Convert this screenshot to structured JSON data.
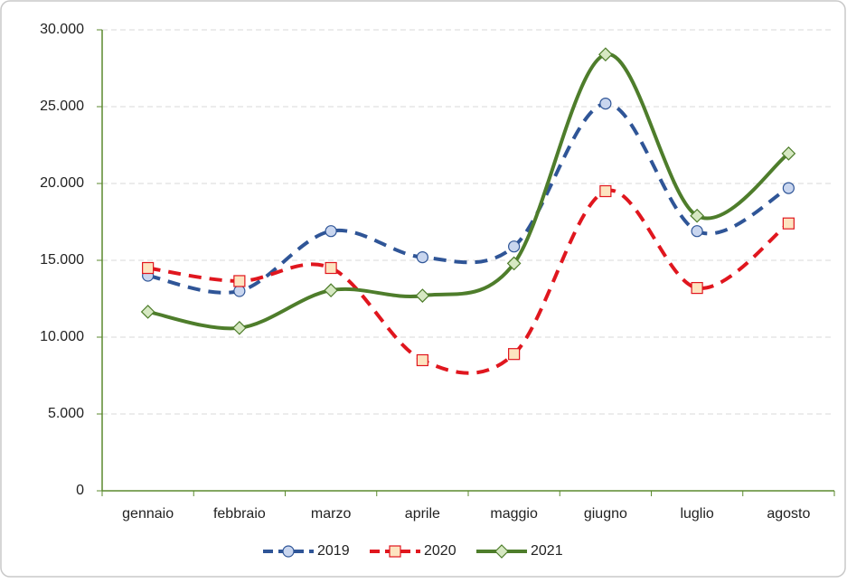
{
  "chart_data": {
    "type": "line",
    "categories": [
      "gennaio",
      "febbraio",
      "marzo",
      "aprile",
      "maggio",
      "giugno",
      "luglio",
      "agosto"
    ],
    "series": [
      {
        "name": "2019",
        "color": "#2f5597",
        "marker": "circle",
        "marker_fill": "#c9d6ef",
        "dashed": true,
        "values": [
          14000,
          13000,
          16900,
          15200,
          15900,
          25200,
          16900,
          19700
        ]
      },
      {
        "name": "2020",
        "color": "#e0161e",
        "marker": "square",
        "marker_fill": "#fde4c0",
        "dashed": true,
        "values": [
          14500,
          13650,
          14500,
          8500,
          8900,
          19500,
          13200,
          17400
        ]
      },
      {
        "name": "2021",
        "color": "#4e7d2b",
        "marker": "diamond",
        "marker_fill": "#d6e8c2",
        "dashed": false,
        "values": [
          11650,
          10600,
          13050,
          12700,
          14800,
          28400,
          17900,
          21950
        ]
      }
    ],
    "ylim": [
      0,
      30000
    ],
    "yticks": [
      0,
      {
        "value": 5000,
        "label": "5.000"
      },
      {
        "value": 10000,
        "label": "10.000"
      },
      {
        "value": 15000,
        "label": "15.000"
      },
      {
        "value": 20000,
        "label": "20.000"
      },
      {
        "value": 25000,
        "label": "25.000"
      },
      {
        "value": 30000,
        "label": "30.000"
      }
    ],
    "grid": true,
    "legend": "bottom",
    "smooth": true
  }
}
